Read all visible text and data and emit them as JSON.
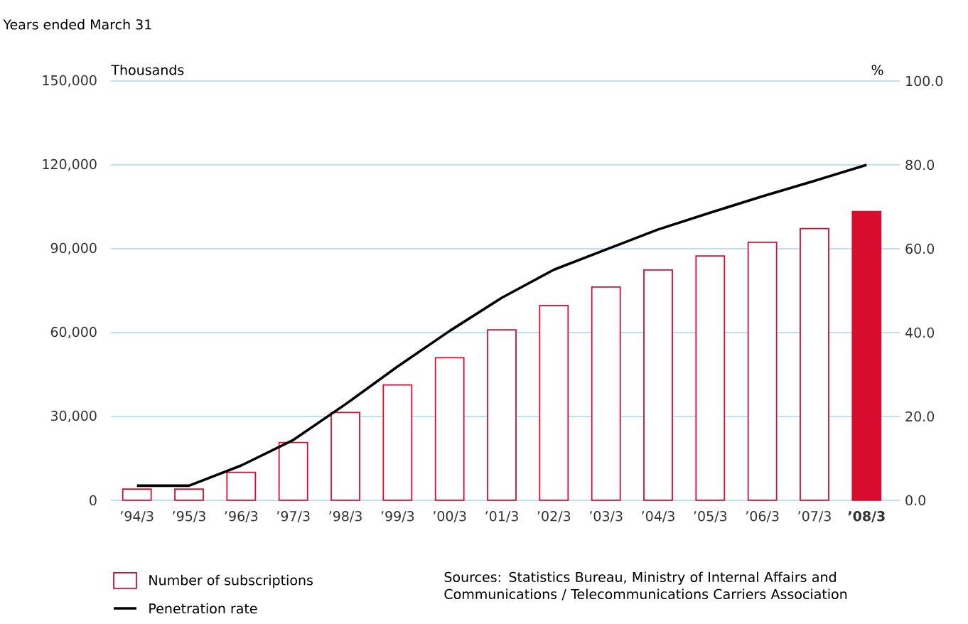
{
  "chart_data": {
    "type": "bar",
    "subtitle": "Years ended March 31",
    "ylabel": "Thousands",
    "y2label": "%",
    "categories": [
      "’94/3",
      "’95/3",
      "’96/3",
      "’97/3",
      "’98/3",
      "’99/3",
      "’00/3",
      "’01/3",
      "’02/3",
      "’03/3",
      "’04/3",
      "’05/3",
      "’06/3",
      "’07/3",
      "**’08/3**"
    ],
    "series": [
      {
        "name": "Number of subscriptions",
        "color": "#d70c2f",
        "colors": [
          "#ffffff",
          "#ffffff",
          "#ffffff",
          "#ffffff",
          "#ffffff",
          "#ffffff",
          "#ffffff",
          "#ffffff",
          "#ffffff",
          "#ffffff",
          "#ffffff",
          "#ffffff",
          "#ffffff",
          "#ffffff",
          "#d70c2f"
        ],
        "values": [
          4000,
          4000,
          10000,
          20700,
          31400,
          41300,
          51000,
          61000,
          69700,
          76300,
          82400,
          87400,
          92300,
          97200,
          103300
        ]
      },
      {
        "name": "Penetration rate",
        "type": "line",
        "axis": "y2",
        "color": "#000000",
        "values": [
          3.5,
          3.5,
          8.3,
          14.4,
          22.9,
          31.9,
          40.4,
          48.3,
          55.0,
          59.8,
          64.6,
          68.6,
          72.5,
          76.2,
          80.0
        ]
      }
    ],
    "ylim": [
      0,
      150000
    ],
    "yticks": [
      0,
      {
        "value": 30000,
        "label": "30,000"
      },
      {
        "value": 60000,
        "label": "60,000"
      },
      {
        "value": 90000,
        "label": "90,000"
      },
      {
        "value": 120000,
        "label": "120,000"
      },
      {
        "value": 150000,
        "label": "150,000"
      }
    ],
    "y2lim": [
      0,
      100
    ],
    "y2ticks": [
      {
        "value": 0,
        "label": "0.0"
      },
      {
        "value": 20,
        "label": "20.0"
      },
      {
        "value": 40,
        "label": "40.0"
      },
      {
        "value": 60,
        "label": "60.0"
      },
      {
        "value": 80,
        "label": "80.0"
      },
      {
        "value": 100,
        "label": "100.0"
      }
    ],
    "grid": "y",
    "legend": "bottom left",
    "annotations": [
      "Sources: Statistics Bureau, Ministry of Internal Affairs and Communications / Telecommunications Carriers Association"
    ]
  }
}
